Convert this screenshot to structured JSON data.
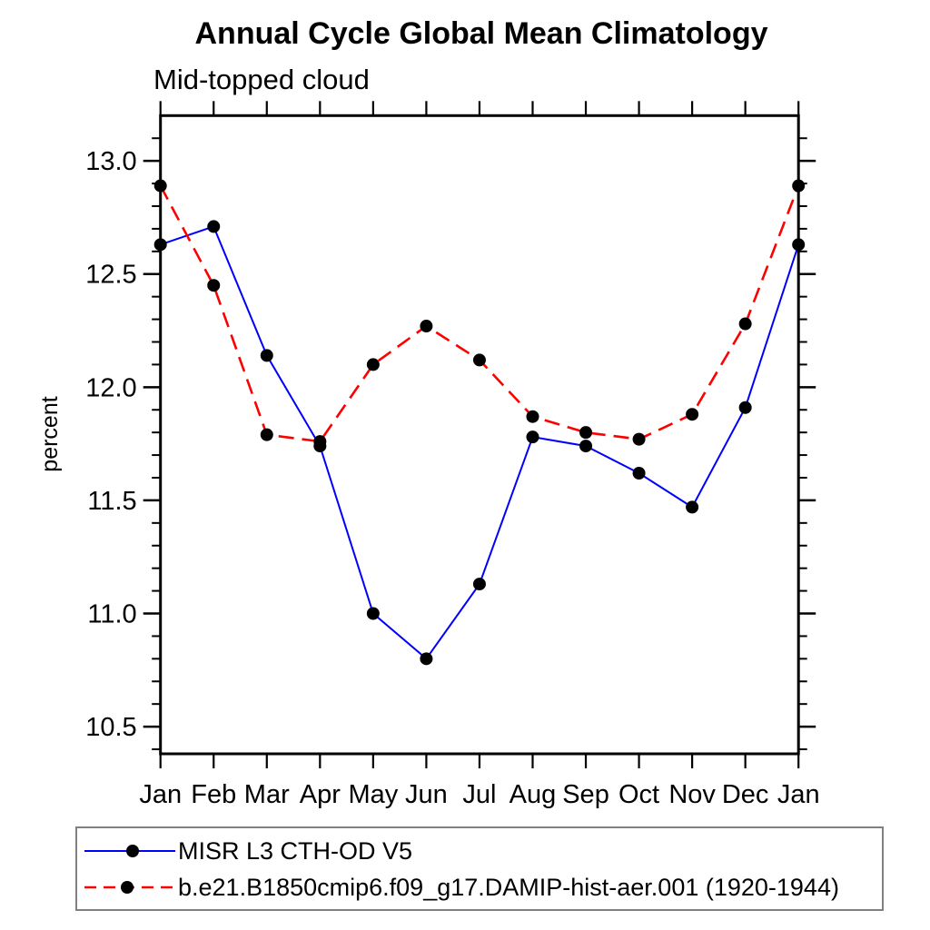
{
  "chart_data": {
    "type": "line",
    "title": "Annual Cycle Global Mean Climatology",
    "subtitle": "Mid-topped cloud",
    "ylabel": "percent",
    "x_categories": [
      "Jan",
      "Feb",
      "Mar",
      "Apr",
      "May",
      "Jun",
      "Jul",
      "Aug",
      "Sep",
      "Oct",
      "Nov",
      "Dec",
      "Jan"
    ],
    "ylim": [
      10.38,
      13.2
    ],
    "yticks_major": [
      10.5,
      11.0,
      11.5,
      12.0,
      12.5,
      13.0
    ],
    "ytick_labels": [
      "10.5",
      "11.0",
      "11.5",
      "12.0",
      "12.5",
      "13.0"
    ],
    "minor_tick_step": 0.1,
    "grid": false,
    "legend_position": "bottom-left-box",
    "axis_color": "#000000",
    "marker_color": "#000000",
    "series": [
      {
        "name": "MISR L3 CTH-OD V5",
        "color": "#0000ff",
        "line_style": "solid",
        "marker": "filled-circle",
        "values": [
          12.63,
          12.71,
          12.14,
          11.74,
          11.0,
          10.8,
          11.13,
          11.78,
          11.74,
          11.62,
          11.47,
          11.91,
          12.63
        ]
      },
      {
        "name": "b.e21.B1850cmip6.f09_g17.DAMIP-hist-aer.001 (1920-1944)",
        "color": "#ff0000",
        "line_style": "dashed",
        "marker": "filled-circle",
        "values": [
          12.89,
          12.45,
          11.79,
          11.76,
          12.1,
          12.27,
          12.12,
          11.87,
          11.8,
          11.77,
          11.88,
          12.28,
          12.89
        ]
      }
    ]
  }
}
